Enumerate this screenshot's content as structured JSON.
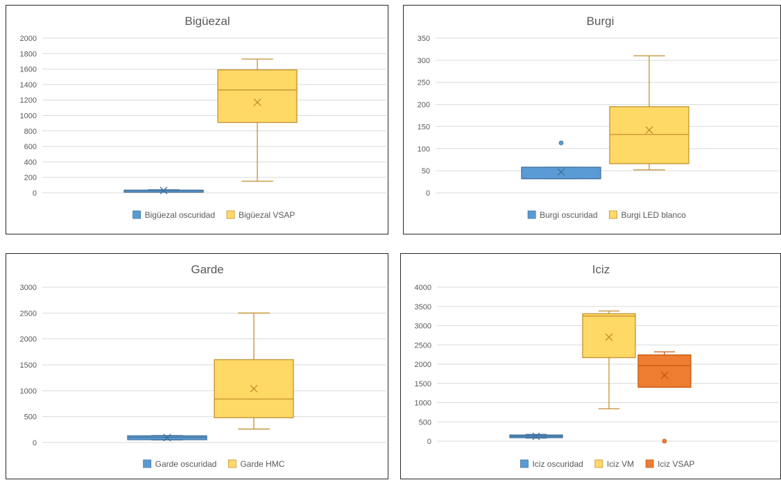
{
  "colors": {
    "blue": "#5b9bd5",
    "blue_stroke": "#41719c",
    "gold": "#ffd966",
    "gold_stroke": "#c58e2e",
    "orange": "#ed7d31",
    "orange_stroke": "#c55a11",
    "grid": "#d9d9d9",
    "text": "#595959"
  },
  "chart_data": [
    {
      "type": "box",
      "title": "Bigüezal",
      "yticks": [
        "0",
        "200",
        "400",
        "600",
        "800",
        "1000",
        "1200",
        "1400",
        "1600",
        "1800",
        "2000"
      ],
      "ylim": [
        0,
        2000
      ],
      "grid": true,
      "legend_position": "bottom",
      "series": [
        {
          "name": "Bigüezal oscuridad",
          "color": "blue",
          "min": 20,
          "q1": 25,
          "median": 30,
          "q3": 35,
          "max": 40,
          "mean": 30,
          "outliers": []
        },
        {
          "name": "Bigüezal VSAP",
          "color": "gold",
          "min": 150,
          "q1": 910,
          "median": 1330,
          "q3": 1590,
          "max": 1730,
          "mean": 1170,
          "outliers": []
        }
      ]
    },
    {
      "type": "box",
      "title": "Burgi",
      "yticks": [
        "0",
        "50",
        "100",
        "150",
        "200",
        "250",
        "300",
        "350"
      ],
      "ylim": [
        0,
        350
      ],
      "grid": true,
      "legend_position": "bottom",
      "series": [
        {
          "name": "Burgi oscuridad",
          "color": "blue",
          "min": 32,
          "q1": 32,
          "median": 32,
          "q3": 58,
          "max": 58,
          "mean": 47,
          "outliers": [
            113
          ]
        },
        {
          "name": "Burgi LED blanco",
          "color": "gold",
          "min": 52,
          "q1": 66,
          "median": 132,
          "q3": 195,
          "max": 310,
          "mean": 142,
          "outliers": []
        }
      ]
    },
    {
      "type": "box",
      "title": "Garde",
      "yticks": [
        "0",
        "500",
        "1000",
        "1500",
        "2000",
        "2500",
        "3000"
      ],
      "ylim": [
        0,
        3000
      ],
      "grid": true,
      "legend_position": "bottom",
      "series": [
        {
          "name": "Garde oscuridad",
          "color": "blue",
          "min": 50,
          "q1": 55,
          "median": 100,
          "q3": 130,
          "max": 135,
          "mean": 95,
          "outliers": []
        },
        {
          "name": "Garde HMC",
          "color": "gold",
          "min": 260,
          "q1": 480,
          "median": 840,
          "q3": 1600,
          "max": 2500,
          "mean": 1040,
          "outliers": []
        }
      ]
    },
    {
      "type": "box",
      "title": "Iciz",
      "yticks": [
        "0",
        "500",
        "1000",
        "1500",
        "2000",
        "2500",
        "3000",
        "3500",
        "4000"
      ],
      "ylim": [
        0,
        4000
      ],
      "grid": true,
      "legend_position": "bottom",
      "series": [
        {
          "name": "Iciz oscuridad",
          "color": "blue",
          "min": 80,
          "q1": 90,
          "median": 125,
          "q3": 160,
          "max": 175,
          "mean": 125,
          "outliers": []
        },
        {
          "name": "Iciz VM",
          "color": "gold",
          "min": 840,
          "q1": 2170,
          "median": 3250,
          "q3": 3310,
          "max": 3380,
          "mean": 2700,
          "outliers": []
        },
        {
          "name": "Iciz VSAP",
          "color": "orange",
          "min": 1400,
          "q1": 1400,
          "median": 1960,
          "q3": 2240,
          "max": 2320,
          "mean": 1710,
          "outliers": [
            0
          ]
        }
      ]
    }
  ]
}
